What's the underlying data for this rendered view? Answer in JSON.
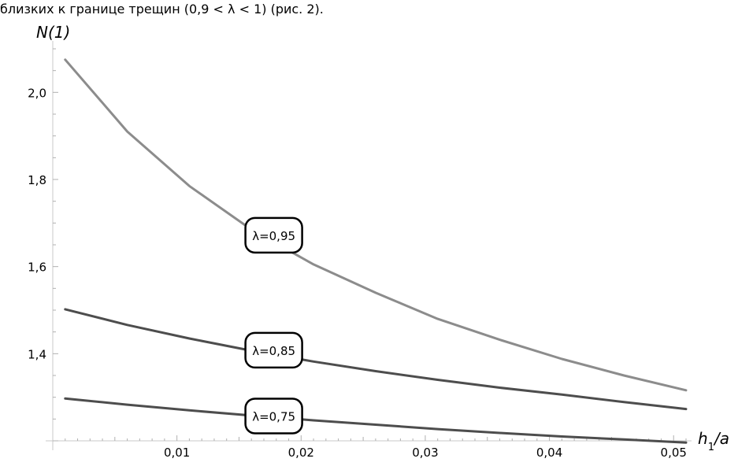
{
  "caption": "близких к границе трещин (0,9 < λ < 1) (рис. 2).",
  "chart_data": {
    "type": "line",
    "xlabel_main": "h",
    "xlabel_sub": "1",
    "xlabel_tail": "/a",
    "ylabel": "N(1)",
    "xlim": [
      0,
      0.051
    ],
    "ylim": [
      1.2,
      2.1
    ],
    "xticks": [
      {
        "value": 0.01,
        "label": "0,01"
      },
      {
        "value": 0.02,
        "label": "0,02"
      },
      {
        "value": 0.03,
        "label": "0,03"
      },
      {
        "value": 0.04,
        "label": "0,04"
      },
      {
        "value": 0.05,
        "label": "0,05"
      }
    ],
    "yticks": [
      {
        "value": 1.4,
        "label": "1,4"
      },
      {
        "value": 1.6,
        "label": "1,6"
      },
      {
        "value": 1.8,
        "label": "1,8"
      },
      {
        "value": 2.0,
        "label": "2,0"
      }
    ],
    "series": [
      {
        "name": "λ=0,95",
        "color": "#8c8c8c",
        "label_at": [
          0.0178,
          1.672
        ],
        "x": [
          0.001,
          0.006,
          0.011,
          0.016,
          0.021,
          0.026,
          0.031,
          0.036,
          0.041,
          0.046,
          0.051
        ],
        "y": [
          2.075,
          1.91,
          1.785,
          1.685,
          1.605,
          1.54,
          1.48,
          1.432,
          1.388,
          1.35,
          1.316
        ]
      },
      {
        "name": "λ=0,85",
        "color": "#4d4d4d",
        "label_at": [
          0.0178,
          1.408
        ],
        "x": [
          0.001,
          0.006,
          0.011,
          0.016,
          0.021,
          0.026,
          0.031,
          0.036,
          0.041,
          0.046,
          0.051
        ],
        "y": [
          1.502,
          1.466,
          1.435,
          1.407,
          1.382,
          1.36,
          1.34,
          1.322,
          1.306,
          1.289,
          1.273
        ]
      },
      {
        "name": "λ=0,75",
        "color": "#4d4d4d",
        "label_at": [
          0.0178,
          1.257
        ],
        "x": [
          0.001,
          0.006,
          0.011,
          0.016,
          0.021,
          0.026,
          0.031,
          0.036,
          0.041,
          0.046,
          0.051
        ],
        "y": [
          1.297,
          1.283,
          1.27,
          1.258,
          1.247,
          1.237,
          1.227,
          1.218,
          1.21,
          1.203,
          1.196
        ]
      }
    ]
  }
}
